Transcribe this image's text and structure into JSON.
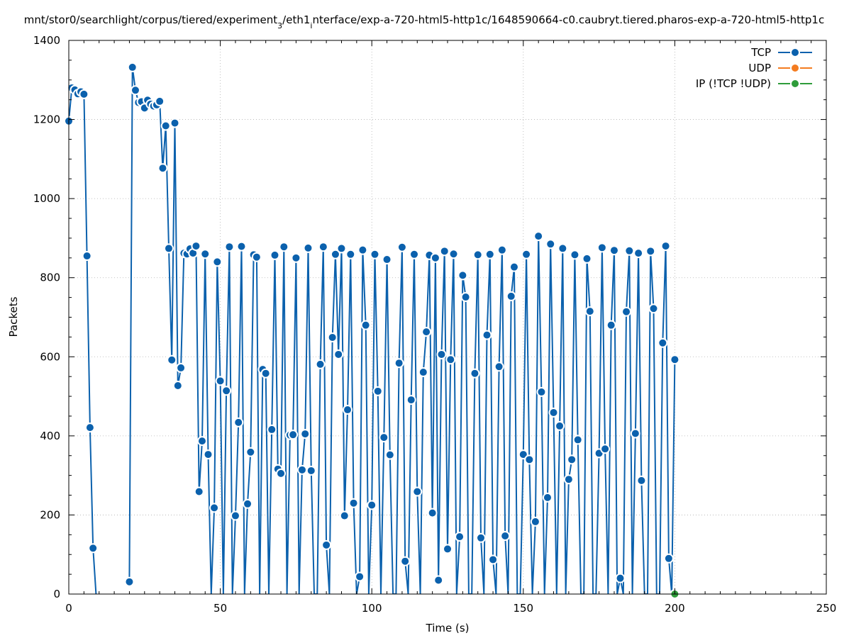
{
  "chart_data": {
    "type": "line",
    "title": "mnt/stor0/searchlight/corpus/tiered/experiment_3/eth1_interface/exp-a-720-html5-http1c/1648590664-c0.caubryt.tiered.pharos-exp-a-720-html5-http1c",
    "title_parts": {
      "a": "mnt/stor0/searchlight/corpus/tiered/experiment",
      "sub1": "3",
      "b": "/eth1",
      "sub2": "i",
      "c": "nterface/exp-a-720-html5-http1c/1648590664-c0.caubryt.tiered.pharos-exp-a-720-html5-http1c"
    },
    "xlabel": "Time (s)",
    "ylabel": "Packets",
    "xlim": [
      0,
      250
    ],
    "ylim": [
      0,
      1400
    ],
    "xticks": [
      0,
      50,
      100,
      150,
      200,
      250
    ],
    "yticks": [
      0,
      200,
      400,
      600,
      800,
      1000,
      1200,
      1400
    ],
    "grid": true,
    "legend_position": "top-right",
    "series": [
      {
        "name": "TCP",
        "color": "#0b61ad",
        "points": [
          [
            0,
            1196
          ],
          [
            1,
            1280
          ],
          [
            2,
            1275
          ],
          [
            3,
            1265
          ],
          [
            4,
            1270
          ],
          [
            5,
            1264
          ],
          [
            6,
            855
          ],
          [
            7,
            421
          ],
          [
            8,
            116
          ],
          [
            9,
            0
          ],
          [
            20,
            31
          ],
          [
            21,
            1332
          ],
          [
            22,
            1274
          ],
          [
            23,
            1243
          ],
          [
            24,
            1245
          ],
          [
            25,
            1229
          ],
          [
            26,
            1249
          ],
          [
            27,
            1239
          ],
          [
            28,
            1234
          ],
          [
            29,
            1237
          ],
          [
            30,
            1246
          ],
          [
            31,
            1077
          ],
          [
            32,
            1184
          ],
          [
            33,
            874
          ],
          [
            34,
            592
          ],
          [
            35,
            1191
          ],
          [
            36,
            527
          ],
          [
            37,
            572
          ],
          [
            38,
            862
          ],
          [
            39,
            860
          ],
          [
            40,
            873
          ],
          [
            41,
            862
          ],
          [
            42,
            880
          ],
          [
            43,
            259
          ],
          [
            44,
            387
          ],
          [
            45,
            860
          ],
          [
            46,
            353
          ],
          [
            47,
            0
          ],
          [
            48,
            218
          ],
          [
            49,
            840
          ],
          [
            50,
            539
          ],
          [
            51,
            0
          ],
          [
            52,
            514
          ],
          [
            53,
            878
          ],
          [
            54,
            0
          ],
          [
            55,
            198
          ],
          [
            56,
            434
          ],
          [
            57,
            879
          ],
          [
            58,
            0
          ],
          [
            59,
            228
          ],
          [
            60,
            359
          ],
          [
            61,
            858
          ],
          [
            62,
            852
          ],
          [
            63,
            0
          ],
          [
            64,
            568
          ],
          [
            65,
            558
          ],
          [
            66,
            0
          ],
          [
            67,
            416
          ],
          [
            68,
            857
          ],
          [
            69,
            316
          ],
          [
            70,
            305
          ],
          [
            71,
            878
          ],
          [
            72,
            0
          ],
          [
            73,
            402
          ],
          [
            74,
            403
          ],
          [
            75,
            850
          ],
          [
            76,
            0
          ],
          [
            77,
            314
          ],
          [
            78,
            405
          ],
          [
            79,
            875
          ],
          [
            80,
            312
          ],
          [
            81,
            0
          ],
          [
            82,
            0
          ],
          [
            83,
            581
          ],
          [
            84,
            878
          ],
          [
            85,
            124
          ],
          [
            86,
            0
          ],
          [
            87,
            649
          ],
          [
            88,
            859
          ],
          [
            89,
            606
          ],
          [
            90,
            874
          ],
          [
            91,
            198
          ],
          [
            92,
            466
          ],
          [
            93,
            859
          ],
          [
            94,
            230
          ],
          [
            95,
            0
          ],
          [
            96,
            44
          ],
          [
            97,
            870
          ],
          [
            98,
            680
          ],
          [
            99,
            0
          ],
          [
            100,
            225
          ],
          [
            101,
            859
          ],
          [
            102,
            513
          ],
          [
            103,
            0
          ],
          [
            104,
            396
          ],
          [
            105,
            846
          ],
          [
            106,
            352
          ],
          [
            107,
            0
          ],
          [
            108,
            0
          ],
          [
            109,
            584
          ],
          [
            110,
            877
          ],
          [
            111,
            83
          ],
          [
            112,
            0
          ],
          [
            113,
            491
          ],
          [
            114,
            859
          ],
          [
            115,
            259
          ],
          [
            116,
            0
          ],
          [
            117,
            561
          ],
          [
            118,
            663
          ],
          [
            119,
            857
          ],
          [
            120,
            205
          ],
          [
            121,
            850
          ],
          [
            122,
            35
          ],
          [
            123,
            606
          ],
          [
            124,
            867
          ],
          [
            125,
            114
          ],
          [
            126,
            593
          ],
          [
            127,
            860
          ],
          [
            128,
            0
          ],
          [
            129,
            145
          ],
          [
            130,
            806
          ],
          [
            131,
            751
          ],
          [
            132,
            0
          ],
          [
            133,
            0
          ],
          [
            134,
            558
          ],
          [
            135,
            858
          ],
          [
            136,
            142
          ],
          [
            137,
            0
          ],
          [
            138,
            655
          ],
          [
            139,
            859
          ],
          [
            140,
            87
          ],
          [
            141,
            0
          ],
          [
            142,
            575
          ],
          [
            143,
            870
          ],
          [
            144,
            147
          ],
          [
            145,
            0
          ],
          [
            146,
            753
          ],
          [
            147,
            827
          ],
          [
            148,
            0
          ],
          [
            149,
            0
          ],
          [
            150,
            353
          ],
          [
            151,
            859
          ],
          [
            152,
            340
          ],
          [
            153,
            0
          ],
          [
            154,
            183
          ],
          [
            155,
            905
          ],
          [
            156,
            511
          ],
          [
            157,
            0
          ],
          [
            158,
            244
          ],
          [
            159,
            885
          ],
          [
            160,
            459
          ],
          [
            161,
            0
          ],
          [
            162,
            425
          ],
          [
            163,
            874
          ],
          [
            164,
            0
          ],
          [
            165,
            290
          ],
          [
            166,
            340
          ],
          [
            167,
            858
          ],
          [
            168,
            390
          ],
          [
            169,
            0
          ],
          [
            170,
            0
          ],
          [
            171,
            848
          ],
          [
            172,
            715
          ],
          [
            173,
            0
          ],
          [
            174,
            0
          ],
          [
            175,
            356
          ],
          [
            176,
            876
          ],
          [
            177,
            367
          ],
          [
            178,
            0
          ],
          [
            179,
            680
          ],
          [
            180,
            869
          ],
          [
            181,
            0
          ],
          [
            182,
            40
          ],
          [
            183,
            0
          ],
          [
            184,
            714
          ],
          [
            185,
            868
          ],
          [
            186,
            0
          ],
          [
            187,
            406
          ],
          [
            188,
            862
          ],
          [
            189,
            287
          ],
          [
            190,
            0
          ],
          [
            191,
            0
          ],
          [
            192,
            867
          ],
          [
            193,
            722
          ],
          [
            194,
            0
          ],
          [
            195,
            0
          ],
          [
            196,
            635
          ],
          [
            197,
            880
          ],
          [
            198,
            90
          ],
          [
            199,
            0
          ],
          [
            200,
            593
          ]
        ]
      },
      {
        "name": "UDP",
        "color": "#f47c20",
        "points": []
      },
      {
        "name": "IP (!TCP  !UDP)",
        "color": "#2e9c3a",
        "points": [
          [
            200,
            0
          ]
        ]
      }
    ]
  }
}
